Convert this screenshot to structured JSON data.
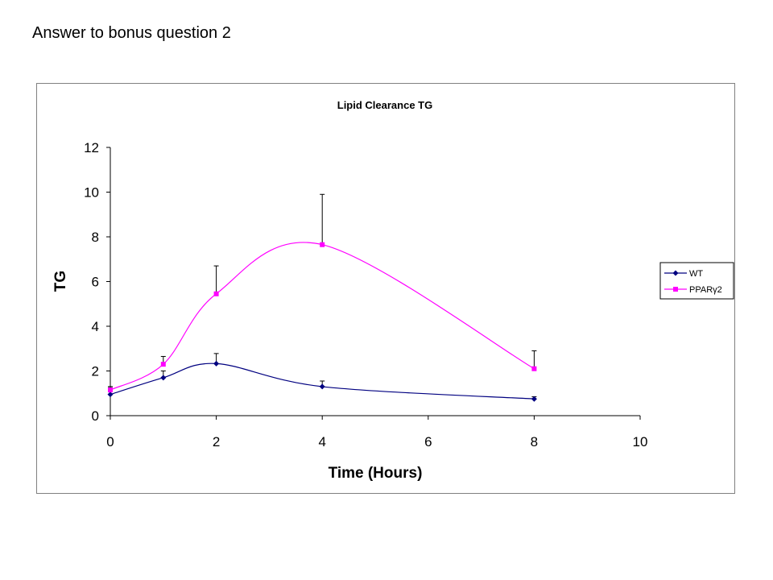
{
  "page": {
    "title": "Answer to bonus question 2"
  },
  "chart_data": {
    "type": "line",
    "title": "Lipid Clearance TG",
    "xlabel": "Time (Hours)",
    "ylabel": "TG",
    "xlim": [
      0,
      10
    ],
    "ylim": [
      0,
      12
    ],
    "x_ticks": [
      "0",
      "2",
      "4",
      "6",
      "8",
      "10"
    ],
    "y_ticks": [
      "0",
      "2",
      "4",
      "6",
      "8",
      "10",
      "12"
    ],
    "grid": false,
    "legend_position": "right",
    "smooth": true,
    "series": [
      {
        "name": "WT",
        "color": "#000080",
        "marker": "diamond",
        "x": [
          0,
          1,
          2,
          4,
          8
        ],
        "y": [
          0.95,
          1.7,
          2.33,
          1.3,
          0.75
        ],
        "error_upper": [
          0.35,
          0.3,
          0.45,
          0.25,
          0.1
        ]
      },
      {
        "name": "PPARγ2",
        "color": "#ff00ff",
        "marker": "square",
        "x": [
          0,
          1,
          2,
          4,
          8
        ],
        "y": [
          1.15,
          2.3,
          5.45,
          7.65,
          2.1
        ],
        "error_upper": [
          0.1,
          0.35,
          1.25,
          2.25,
          0.8
        ]
      }
    ]
  }
}
